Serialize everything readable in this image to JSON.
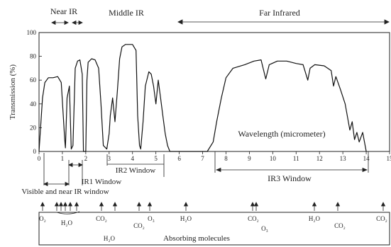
{
  "chart_data": {
    "type": "line",
    "title": "",
    "xlabel": "Wavelength (micrometer)",
    "ylabel": "Transmission (%)",
    "xlim": [
      0,
      15
    ],
    "ylim": [
      0,
      100
    ],
    "xticks": [
      0,
      1,
      2,
      3,
      4,
      5,
      6,
      7,
      8,
      9,
      10,
      11,
      12,
      13,
      14,
      15
    ],
    "yticks": [
      0,
      20,
      40,
      60,
      80,
      100
    ],
    "grid": false,
    "series": [
      {
        "values": [
          [
            0.0,
            0
          ],
          [
            0.15,
            45
          ],
          [
            0.25,
            58
          ],
          [
            0.4,
            62
          ],
          [
            0.6,
            62
          ],
          [
            0.8,
            63
          ],
          [
            0.95,
            58
          ],
          [
            1.1,
            10
          ],
          [
            1.13,
            3
          ],
          [
            1.2,
            45
          ],
          [
            1.3,
            55
          ],
          [
            1.38,
            2
          ],
          [
            1.45,
            5
          ],
          [
            1.55,
            70
          ],
          [
            1.65,
            76
          ],
          [
            1.75,
            77
          ],
          [
            1.85,
            65
          ],
          [
            1.9,
            0
          ],
          [
            2.0,
            0
          ],
          [
            2.05,
            60
          ],
          [
            2.1,
            75
          ],
          [
            2.25,
            78
          ],
          [
            2.4,
            77
          ],
          [
            2.55,
            70
          ],
          [
            2.65,
            40
          ],
          [
            2.75,
            5
          ],
          [
            2.9,
            2
          ],
          [
            3.0,
            15
          ],
          [
            3.05,
            30
          ],
          [
            3.15,
            45
          ],
          [
            3.25,
            25
          ],
          [
            3.35,
            50
          ],
          [
            3.45,
            78
          ],
          [
            3.55,
            88
          ],
          [
            3.7,
            90
          ],
          [
            3.85,
            90
          ],
          [
            4.0,
            90
          ],
          [
            4.15,
            85
          ],
          [
            4.22,
            30
          ],
          [
            4.3,
            5
          ],
          [
            4.35,
            2
          ],
          [
            4.45,
            25
          ],
          [
            4.55,
            55
          ],
          [
            4.7,
            67
          ],
          [
            4.8,
            65
          ],
          [
            4.9,
            55
          ],
          [
            5.0,
            40
          ],
          [
            5.1,
            60
          ],
          [
            5.2,
            45
          ],
          [
            5.3,
            30
          ],
          [
            5.4,
            15
          ],
          [
            5.5,
            5
          ],
          [
            5.6,
            0
          ],
          [
            5.7,
            0
          ],
          [
            7.2,
            0
          ],
          [
            7.45,
            8
          ],
          [
            7.6,
            25
          ],
          [
            7.8,
            45
          ],
          [
            8.0,
            62
          ],
          [
            8.3,
            70
          ],
          [
            8.8,
            73
          ],
          [
            9.2,
            76
          ],
          [
            9.5,
            77
          ],
          [
            9.7,
            61
          ],
          [
            9.85,
            73
          ],
          [
            10.2,
            76
          ],
          [
            10.6,
            76
          ],
          [
            11.0,
            74
          ],
          [
            11.3,
            73
          ],
          [
            11.5,
            60
          ],
          [
            11.6,
            70
          ],
          [
            11.8,
            73
          ],
          [
            12.2,
            72
          ],
          [
            12.5,
            68
          ],
          [
            12.6,
            55
          ],
          [
            12.7,
            63
          ],
          [
            12.9,
            52
          ],
          [
            13.1,
            40
          ],
          [
            13.3,
            18
          ],
          [
            13.4,
            25
          ],
          [
            13.5,
            10
          ],
          [
            13.6,
            16
          ],
          [
            13.7,
            8
          ],
          [
            13.85,
            16
          ],
          [
            14.0,
            0
          ]
        ]
      }
    ],
    "spectral_regions": [
      {
        "label": "Near IR",
        "x": [
          0.7,
          1.3
        ]
      },
      {
        "label": "Middle IR",
        "x": [
          3,
          5
        ]
      },
      {
        "label": "Far Infrared",
        "x": [
          6,
          15
        ]
      }
    ],
    "windows": [
      {
        "label": "Visible and near IR window",
        "x": [
          0.3,
          1.3
        ]
      },
      {
        "label": "IR1 Window",
        "x": [
          1.5,
          1.9
        ]
      },
      {
        "label": "IR2 Window",
        "x": [
          3,
          5
        ]
      },
      {
        "label": "IR3 Window",
        "x": [
          8,
          14
        ]
      }
    ],
    "absorbing_molecules": {
      "title": "Absorbing molecules",
      "labels": [
        {
          "text": "O₂",
          "x": 0.76
        },
        {
          "text": "H₂O",
          "x": 1.4
        },
        {
          "text": "CO₂",
          "x": 2.7
        },
        {
          "text": "H₂O",
          "x": 3.0
        },
        {
          "text": "CO₂",
          "x": 4.3
        },
        {
          "text": "O₃",
          "x": 4.7
        },
        {
          "text": "H₂O",
          "x": 6.3
        },
        {
          "text": "CO₂",
          "x": 9.6
        },
        {
          "text": "O₃",
          "x": 9.6
        },
        {
          "text": "H₂O",
          "x": 12.5
        },
        {
          "text": "CO₂",
          "x": 13.2
        },
        {
          "text": "CO₂",
          "x": 15.0
        }
      ]
    }
  }
}
